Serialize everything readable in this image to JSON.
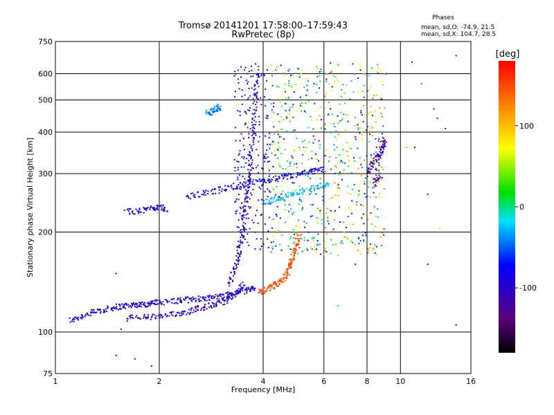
{
  "chart_data": {
    "type": "scatter",
    "title": "Tromsø 20141201 17:58:00–17:59:43",
    "subtitle": "RwPretec (8p)",
    "xlabel": "Frequency [MHz]",
    "ylabel": "Stationary phase Virtual Height [km]",
    "x_scale": "log",
    "y_scale": "log",
    "xlim": [
      1,
      16
    ],
    "ylim": [
      75,
      750
    ],
    "x_ticks": [
      1,
      2,
      4,
      6,
      8,
      10,
      16
    ],
    "x_tick_labels": [
      "1",
      "2",
      "4",
      "6",
      "8",
      "10",
      "16"
    ],
    "y_ticks": [
      75,
      100,
      200,
      300,
      400,
      500,
      600,
      750
    ],
    "y_tick_labels": [
      "75",
      "100",
      "200",
      "300",
      "400",
      "500",
      "600",
      "750"
    ],
    "grid": true,
    "stats": {
      "heading": "Phases",
      "line_o": "mean, sd,O: -74.9, 21.5",
      "line_x": "mean, sd,X: 104.7, 28.5"
    },
    "colorbar": {
      "label": "[deg]",
      "range": [
        -180,
        180
      ],
      "ticks": [
        100,
        0,
        -100
      ],
      "tick_labels": [
        "100",
        "0",
        "-100"
      ],
      "colormap": "rainbow (black → purple → blue → cyan → green → yellow → red)"
    },
    "traces": [
      {
        "desc": "O-mode low trace",
        "color_value": -95,
        "points": [
          [
            1.1,
            108
          ],
          [
            1.2,
            112
          ],
          [
            1.3,
            115
          ],
          [
            1.4,
            117
          ],
          [
            1.5,
            119
          ],
          [
            1.6,
            120
          ],
          [
            1.7,
            121
          ],
          [
            1.8,
            121
          ],
          [
            1.9,
            122
          ],
          [
            2.0,
            123
          ],
          [
            2.2,
            124
          ],
          [
            2.4,
            125
          ],
          [
            2.6,
            126
          ],
          [
            2.8,
            127
          ],
          [
            3.0,
            128
          ],
          [
            3.2,
            130
          ],
          [
            3.4,
            132
          ],
          [
            3.6,
            134
          ],
          [
            3.8,
            136
          ]
        ]
      },
      {
        "desc": "O-mode second trace",
        "color_value": -100,
        "points": [
          [
            1.6,
            110
          ],
          [
            1.8,
            111
          ],
          [
            2.0,
            111
          ],
          [
            2.2,
            113
          ],
          [
            2.4,
            115
          ],
          [
            2.6,
            118
          ],
          [
            2.8,
            120
          ],
          [
            3.0,
            122
          ],
          [
            3.2,
            126
          ],
          [
            3.4,
            132
          ],
          [
            3.5,
            140
          ]
        ]
      },
      {
        "desc": "O-mode cusp",
        "color_value": -105,
        "points": [
          [
            3.2,
            140
          ],
          [
            3.3,
            155
          ],
          [
            3.4,
            170
          ],
          [
            3.45,
            190
          ],
          [
            3.5,
            210
          ],
          [
            3.55,
            240
          ],
          [
            3.6,
            270
          ],
          [
            3.65,
            300
          ],
          [
            3.7,
            350
          ],
          [
            3.75,
            420
          ],
          [
            3.8,
            500
          ],
          [
            3.85,
            600
          ]
        ]
      },
      {
        "desc": "O-mode F trace",
        "color_value": -85,
        "points": [
          [
            2.4,
            255
          ],
          [
            2.7,
            262
          ],
          [
            3.0,
            268
          ],
          [
            3.3,
            275
          ],
          [
            3.6,
            280
          ],
          [
            4.0,
            285
          ],
          [
            4.4,
            290
          ],
          [
            4.8,
            295
          ],
          [
            5.2,
            300
          ],
          [
            5.6,
            305
          ],
          [
            6.0,
            310
          ]
        ]
      },
      {
        "desc": "X-mode trace",
        "color_value": 150,
        "points": [
          [
            3.9,
            132
          ],
          [
            4.1,
            134
          ],
          [
            4.3,
            138
          ],
          [
            4.5,
            142
          ],
          [
            4.7,
            150
          ],
          [
            4.8,
            160
          ],
          [
            4.9,
            172
          ],
          [
            5.0,
            185
          ],
          [
            5.1,
            200
          ]
        ]
      },
      {
        "desc": "Upper cyan trace",
        "color_value": -30,
        "points": [
          [
            4.0,
            245
          ],
          [
            4.3,
            250
          ],
          [
            4.6,
            255
          ],
          [
            5.0,
            262
          ],
          [
            5.4,
            268
          ],
          [
            5.8,
            275
          ],
          [
            6.2,
            280
          ]
        ]
      },
      {
        "desc": "Oblique echo",
        "color_value": -40,
        "points": [
          [
            2.75,
            455
          ],
          [
            2.85,
            462
          ],
          [
            2.95,
            470
          ],
          [
            3.0,
            478
          ]
        ]
      },
      {
        "desc": "High-frequency cluster",
        "color_value": -120,
        "points": [
          [
            8.0,
            300
          ],
          [
            8.3,
            320
          ],
          [
            8.6,
            340
          ],
          [
            8.9,
            360
          ],
          [
            9.0,
            380
          ],
          [
            8.4,
            280
          ],
          [
            8.8,
            300
          ]
        ]
      },
      {
        "desc": "Isolated echo near 1.7 MHz",
        "color_value": -90,
        "points": [
          [
            1.6,
            230
          ],
          [
            1.75,
            232
          ],
          [
            1.9,
            236
          ],
          [
            2.0,
            238
          ],
          [
            2.1,
            235
          ]
        ]
      }
    ],
    "scatter": {
      "description": "Dense cloud of phase-coloured echoes between 3.3–9 MHz and 150–650 km",
      "color_range": [
        -130,
        140
      ]
    }
  }
}
